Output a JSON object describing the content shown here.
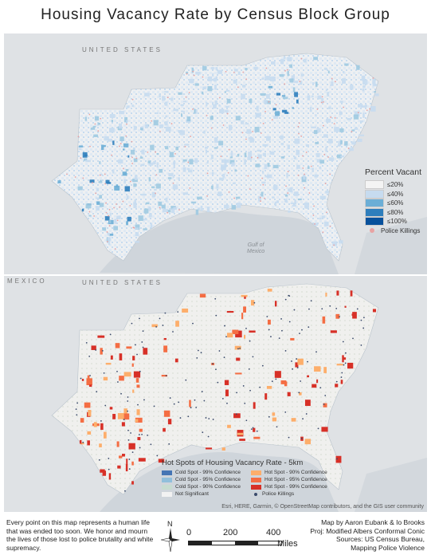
{
  "title": "Housing Vacancy Rate by Census Block Group",
  "top_map": {
    "country_label": "UNITED STATES",
    "water_label_1": "Gulf of",
    "water_label_2": "Mexico",
    "legend": {
      "title": "Percent Vacant",
      "classes": [
        {
          "label": "≤20%",
          "color": "#f4f4f4"
        },
        {
          "label": "≤40%",
          "color": "#c6dbef"
        },
        {
          "label": "≤60%",
          "color": "#6baed6"
        },
        {
          "label": "≤80%",
          "color": "#2e7ebc"
        },
        {
          "label": "≤100%",
          "color": "#08519c"
        }
      ],
      "points_label": "Police Killings",
      "points_color": "#e8a3a3"
    }
  },
  "bottom_map": {
    "country_label_1": "MEXICO",
    "country_label_2": "UNITED STATES",
    "legend": {
      "title": "Hot Spots of Housing Vacancy Rate - 5km",
      "items": [
        {
          "label": "Cold Spot - 99% Confidence",
          "color": "#4575b4"
        },
        {
          "label": "Hot Spot - 90% Confidence",
          "color": "#fdae6b"
        },
        {
          "label": "Cold Spot - 95% Confidence",
          "color": "#91bfdb"
        },
        {
          "label": "Hot Spot - 95% Confidence",
          "color": "#f46d43"
        },
        {
          "label": "Cold Spot - 90% Confidence",
          "color": "#c7dcd0"
        },
        {
          "label": "Hot Spot - 99% Confidence",
          "color": "#d73027"
        },
        {
          "label": "Not Significant",
          "color": "#f2f2f2"
        }
      ],
      "points_label": "Police Killings",
      "points_color": "#3a4a6b"
    },
    "attribution": "Esri, HERE, Garmin, © OpenStreetMap contributors, and the GIS user community"
  },
  "footer": {
    "statement": "Every point on this map represents a human life that was ended too soon. We honor and mourn the lives of those lost to police brutality and white supremacy.",
    "credit_1": "Map by Aaron Eubank & Io Brooks",
    "credit_2": "Proj: Modified Albers Conformal Conic",
    "credit_3": "Sources: US Census Bureau,",
    "credit_4": "Mapping Police Violence",
    "north_label": "N",
    "scale": {
      "ticks": [
        "0",
        "200",
        "400"
      ],
      "unit": "Miles"
    }
  }
}
